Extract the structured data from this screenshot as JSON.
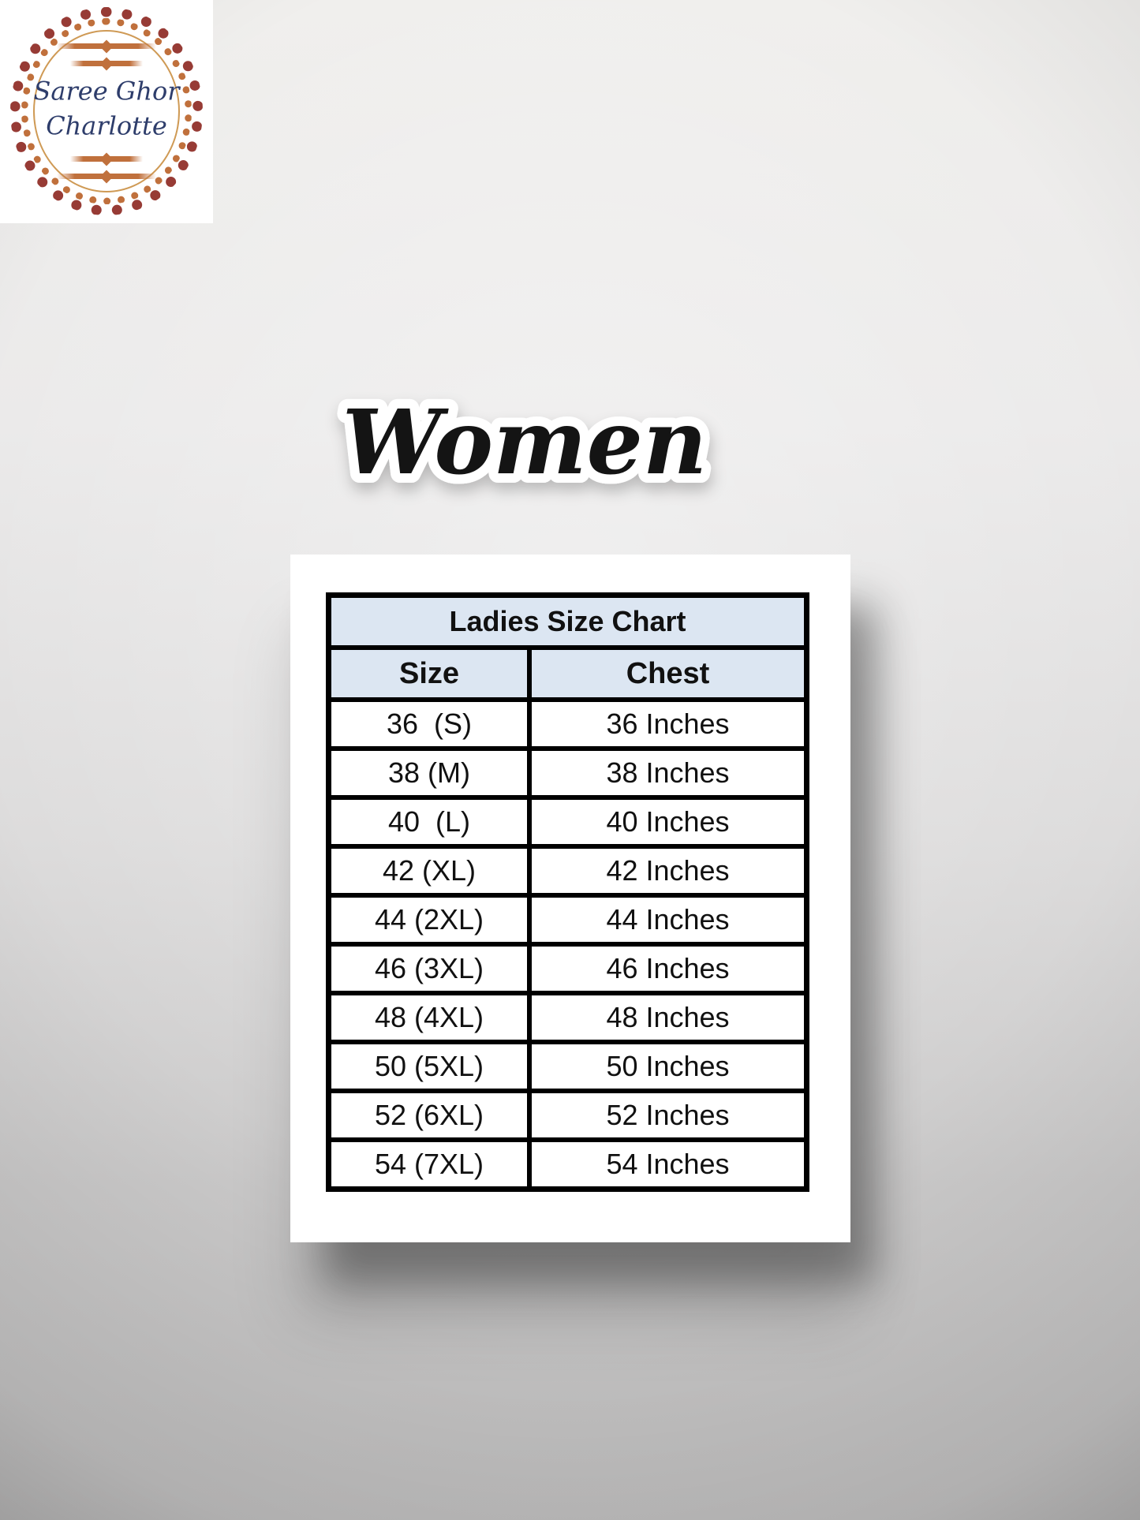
{
  "brand_logo": {
    "line1": "Saree Ghor",
    "line2": "Charlotte"
  },
  "heading": {
    "text": "Women"
  },
  "chart_data": {
    "type": "table",
    "title": "Ladies Size Chart",
    "columns": [
      "Size",
      "Chest"
    ],
    "rows": [
      [
        "36  (S)",
        "36 Inches"
      ],
      [
        "38 (M)",
        "38 Inches"
      ],
      [
        "40  (L)",
        "40 Inches"
      ],
      [
        "42 (XL)",
        "42 Inches"
      ],
      [
        "44 (2XL)",
        "44 Inches"
      ],
      [
        "46 (3XL)",
        "46 Inches"
      ],
      [
        "48 (4XL)",
        "48 Inches"
      ],
      [
        "50 (5XL)",
        "50 Inches"
      ],
      [
        "52 (6XL)",
        "52 Inches"
      ],
      [
        "54 (7XL)",
        "54 Inches"
      ]
    ]
  },
  "colors": {
    "header-bg": "#dce6f2",
    "table-border": "#000000",
    "card-bg": "#ffffff",
    "heading-fill": "#141414",
    "heading-outline": "#ffffff",
    "logo-text": "#2e3d6b",
    "ornament-maroon": "#973b35",
    "ornament-rust": "#c0703c",
    "ornament-gold": "#cf9a55"
  }
}
